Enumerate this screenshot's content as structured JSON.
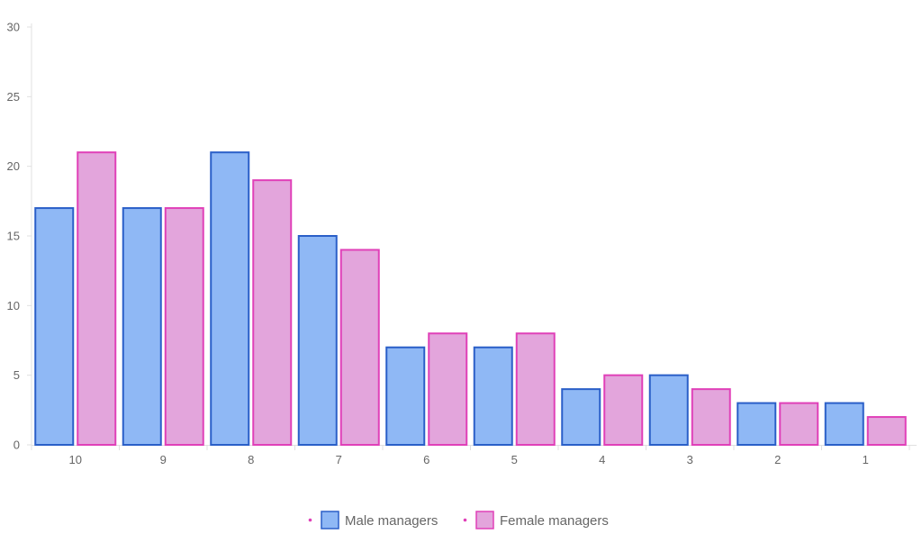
{
  "chart_data": {
    "type": "bar",
    "title": "",
    "xlabel": "",
    "ylabel": "",
    "categories": [
      "10",
      "9",
      "8",
      "7",
      "6",
      "5",
      "4",
      "3",
      "2",
      "1"
    ],
    "series": [
      {
        "name": "Male managers",
        "values": [
          17,
          17,
          21,
          15,
          7,
          7,
          4,
          5,
          3,
          3
        ],
        "fill": "#8fb8f5",
        "stroke": "#2a5fc8"
      },
      {
        "name": "Female managers",
        "values": [
          21,
          17,
          19,
          14,
          8,
          8,
          5,
          4,
          3,
          2
        ],
        "fill": "#e3a5dc",
        "stroke": "#e040b8"
      }
    ],
    "ylim": [
      0,
      30
    ],
    "yticks": [
      0,
      5,
      10,
      15,
      20,
      25,
      30
    ],
    "grid": false,
    "legend_position": "bottom-center",
    "legend_dot_color": "#e040b8"
  }
}
